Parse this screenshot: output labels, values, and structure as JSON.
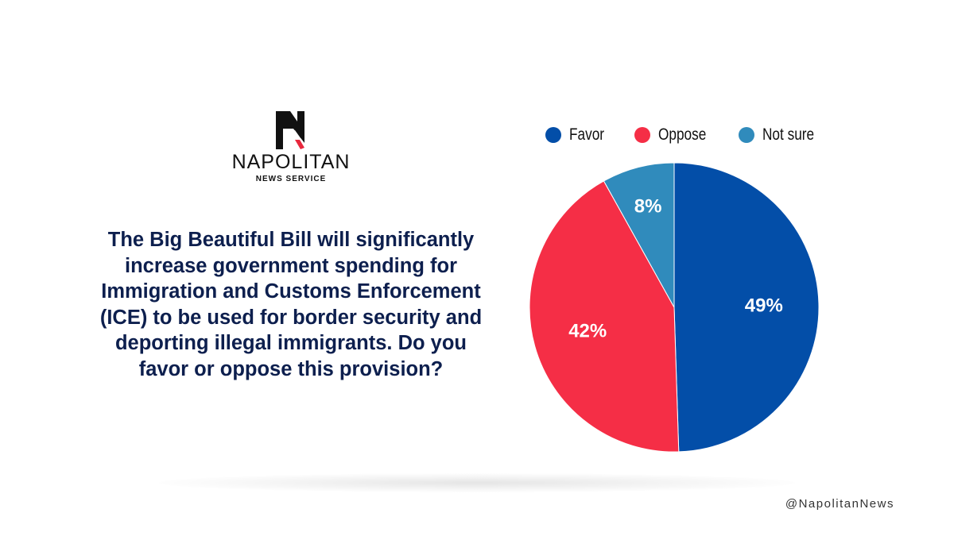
{
  "brand": {
    "name": "NAPOLITAN",
    "subtitle": "NEWS SERVICE",
    "logo_letter": "N"
  },
  "question": "The Big Beautiful Bill will significantly increase government spending for Immigration and Customs Enforcement (ICE) to be used for border security and deporting illegal immigrants. Do you favor or oppose this provision?",
  "handle": "@NapolitanNews",
  "chart_data": {
    "type": "pie",
    "title": "",
    "categories": [
      "Favor",
      "Oppose",
      "Not sure"
    ],
    "values": [
      49,
      42,
      8
    ],
    "labels": [
      "49%",
      "42%",
      "8%"
    ],
    "colors": [
      "#034ea8",
      "#f52e46",
      "#308bbc"
    ],
    "legend_placement": "top",
    "start_angle": "12 o'clock",
    "direction": "clockwise"
  }
}
